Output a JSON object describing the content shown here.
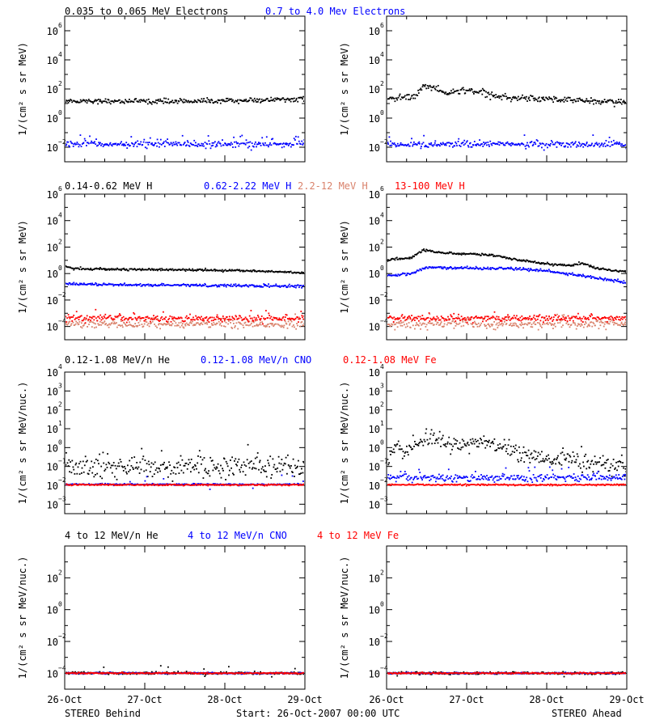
{
  "colors": {
    "black": "#000000",
    "blue": "#0000ff",
    "salmon": "#d9826b",
    "red": "#ff0000"
  },
  "footer": {
    "left": "STEREO Behind",
    "center": "Start: 26-Oct-2007 00:00 UTC",
    "right": "STEREO Ahead"
  },
  "x_axis": {
    "ticks": [
      "26-Oct",
      "27-Oct",
      "28-Oct",
      "29-Oct"
    ],
    "range_days": [
      0,
      3
    ],
    "minor_tick_hours": 6
  },
  "rows": [
    {
      "legend": [
        {
          "text": "0.035 to 0.065 MeV Electrons",
          "color": "#000000"
        },
        {
          "text": "0.7 to 4.0 Mev Electrons",
          "color": "#0000ff"
        }
      ],
      "ylabel": "1/(cm² s sr MeV)",
      "log_range": [
        -3,
        7
      ],
      "tick_exponents": [
        -2,
        0,
        2,
        4,
        6
      ]
    },
    {
      "legend": [
        {
          "text": "0.14-0.62 MeV H",
          "color": "#000000"
        },
        {
          "text": "0.62-2.22 MeV H",
          "color": "#0000ff"
        },
        {
          "text": "2.2-12 MeV H",
          "color": "#d9826b"
        },
        {
          "text": "13-100 MeV H",
          "color": "#ff0000"
        }
      ],
      "ylabel": "1/(cm² s sr MeV)",
      "log_range": [
        -5,
        6
      ],
      "tick_exponents": [
        -4,
        -2,
        0,
        2,
        4,
        6
      ]
    },
    {
      "legend": [
        {
          "text": "0.12-1.08 MeV/n He",
          "color": "#000000"
        },
        {
          "text": "0.12-1.08 MeV/n CNO",
          "color": "#0000ff"
        },
        {
          "text": "0.12-1.08 MeV Fe",
          "color": "#ff0000"
        }
      ],
      "ylabel": "1/(cm² s sr MeV/nuc.)",
      "log_range": [
        -3.5,
        4
      ],
      "tick_exponents": [
        -3,
        -2,
        -1,
        0,
        1,
        2,
        3,
        4
      ]
    },
    {
      "legend": [
        {
          "text": "4 to 12 MeV/n He",
          "color": "#000000"
        },
        {
          "text": "4 to 12 MeV/n CNO",
          "color": "#0000ff"
        },
        {
          "text": "4 to 12 MeV Fe",
          "color": "#ff0000"
        }
      ],
      "ylabel": "1/(cm² s sr MeV/nuc.)",
      "log_range": [
        -5,
        4
      ],
      "tick_exponents": [
        -4,
        -2,
        0,
        2
      ]
    }
  ],
  "chart_data": [
    {
      "type": "scatter",
      "panel": "electrons-behind",
      "row": 0,
      "col": 0,
      "yscale": "log",
      "series": [
        {
          "name": "0.035 to 0.065 MeV Electrons",
          "color": "#000000",
          "baseline": [
            [
              0,
              15
            ],
            [
              1,
              14
            ],
            [
              2,
              15
            ],
            [
              3,
              20
            ]
          ],
          "scatter": 0.08,
          "outliers": 0.0
        },
        {
          "name": "0.7 to 4.0 Mev Electrons",
          "color": "#0000ff",
          "baseline": [
            [
              0,
              0.016
            ],
            [
              3,
              0.016
            ]
          ],
          "scatter": 0.1,
          "outliers": 0.12
        }
      ]
    },
    {
      "type": "scatter",
      "panel": "electrons-ahead",
      "row": 0,
      "col": 1,
      "yscale": "log",
      "series": [
        {
          "name": "0.035 to 0.065 MeV Electrons",
          "color": "#000000",
          "baseline": [
            [
              0,
              20
            ],
            [
              0.2,
              25
            ],
            [
              0.35,
              30
            ],
            [
              0.45,
              150
            ],
            [
              0.6,
              120
            ],
            [
              0.7,
              50
            ],
            [
              0.9,
              70
            ],
            [
              1.0,
              80
            ],
            [
              1.2,
              60
            ],
            [
              1.35,
              30
            ],
            [
              1.6,
              25
            ],
            [
              2.0,
              20
            ],
            [
              2.5,
              15
            ],
            [
              3,
              12
            ]
          ],
          "scatter": 0.1,
          "outliers": 0.0
        },
        {
          "name": "0.7 to 4.0 Mev Electrons",
          "color": "#0000ff",
          "baseline": [
            [
              0,
              0.015
            ],
            [
              3,
              0.015
            ]
          ],
          "scatter": 0.1,
          "outliers": 0.1
        }
      ]
    },
    {
      "type": "scatter",
      "panel": "protons-behind",
      "row": 1,
      "col": 0,
      "yscale": "log",
      "series": [
        {
          "name": "0.14-0.62 MeV H",
          "color": "#000000",
          "baseline": [
            [
              0,
              3.5
            ],
            [
              0.1,
              2.3
            ],
            [
              1,
              2
            ],
            [
              2,
              1.7
            ],
            [
              2.5,
              1.5
            ],
            [
              3,
              1.1
            ]
          ],
          "scatter": 0.04,
          "outliers": 0.0
        },
        {
          "name": "0.62-2.22 MeV H",
          "color": "#0000ff",
          "baseline": [
            [
              0,
              0.15
            ],
            [
              3,
              0.11
            ]
          ],
          "scatter": 0.05,
          "outliers": 0.0
        },
        {
          "name": "2.2-12 MeV H",
          "color": "#d9826b",
          "baseline": [
            [
              0,
              0.00015
            ],
            [
              3,
              0.00015
            ]
          ],
          "scatter": 0.15,
          "outliers": 0.2
        },
        {
          "name": "13-100 MeV H",
          "color": "#ff0000",
          "baseline": [
            [
              0,
              0.0004
            ],
            [
              3,
              0.0004
            ]
          ],
          "scatter": 0.12,
          "outliers": 0.05
        }
      ]
    },
    {
      "type": "scatter",
      "panel": "protons-ahead",
      "row": 1,
      "col": 1,
      "yscale": "log",
      "series": [
        {
          "name": "0.14-0.62 MeV H",
          "color": "#000000",
          "baseline": [
            [
              0,
              10
            ],
            [
              0.3,
              15
            ],
            [
              0.45,
              60
            ],
            [
              0.6,
              40
            ],
            [
              1.0,
              30
            ],
            [
              1.3,
              25
            ],
            [
              1.5,
              15
            ],
            [
              1.8,
              8
            ],
            [
              2.0,
              5
            ],
            [
              2.3,
              4
            ],
            [
              2.45,
              6
            ],
            [
              2.6,
              2.5
            ],
            [
              3,
              1.3
            ]
          ],
          "scatter": 0.04,
          "outliers": 0.0
        },
        {
          "name": "0.62-2.22 MeV H",
          "color": "#0000ff",
          "baseline": [
            [
              0,
              0.7
            ],
            [
              0.3,
              1
            ],
            [
              0.5,
              3
            ],
            [
              1.0,
              2.5
            ],
            [
              1.5,
              2.5
            ],
            [
              2.0,
              1.5
            ],
            [
              2.5,
              0.6
            ],
            [
              3,
              0.2
            ]
          ],
          "scatter": 0.05,
          "outliers": 0.0
        },
        {
          "name": "2.2-12 MeV H",
          "color": "#d9826b",
          "baseline": [
            [
              0,
              0.00015
            ],
            [
              3,
              0.00015
            ]
          ],
          "scatter": 0.15,
          "outliers": 0.2
        },
        {
          "name": "13-100 MeV H",
          "color": "#ff0000",
          "baseline": [
            [
              0,
              0.0004
            ],
            [
              3,
              0.0004
            ]
          ],
          "scatter": 0.12,
          "outliers": 0.05
        }
      ]
    },
    {
      "type": "scatter",
      "panel": "ions-low-behind",
      "row": 2,
      "col": 0,
      "yscale": "log",
      "series": [
        {
          "name": "0.12-1.08 MeV/n He",
          "color": "#000000",
          "baseline": [
            [
              0,
              0.12
            ],
            [
              0.3,
              0.1
            ],
            [
              3,
              0.09
            ]
          ],
          "scatter": 0.3,
          "outliers": 0.2
        },
        {
          "name": "0.12-1.08 MeV/n CNO",
          "color": "#0000ff",
          "baseline": [
            [
              0,
              0.011
            ],
            [
              3,
              0.011
            ]
          ],
          "scatter": 0.02,
          "outliers": 0.05
        },
        {
          "name": "0.12-1.08 MeV Fe",
          "color": "#ff0000",
          "baseline": [
            [
              0,
              0.0105
            ],
            [
              3,
              0.0105
            ]
          ],
          "scatter": 0.02,
          "outliers": 0.0
        }
      ]
    },
    {
      "type": "scatter",
      "panel": "ions-low-ahead",
      "row": 2,
      "col": 1,
      "yscale": "log",
      "series": [
        {
          "name": "0.12-1.08 MeV/n He",
          "color": "#000000",
          "baseline": [
            [
              0,
              0.2
            ],
            [
              0.1,
              1.5
            ],
            [
              0.2,
              0.5
            ],
            [
              0.4,
              2.5
            ],
            [
              0.6,
              3.0
            ],
            [
              0.8,
              1.5
            ],
            [
              1.0,
              1.2
            ],
            [
              1.1,
              2.2
            ],
            [
              1.3,
              1.8
            ],
            [
              1.5,
              0.7
            ],
            [
              1.7,
              0.4
            ],
            [
              2.0,
              0.25
            ],
            [
              2.3,
              0.25
            ],
            [
              2.5,
              0.12
            ],
            [
              3,
              0.1
            ]
          ],
          "scatter": 0.2,
          "outliers": 0.15
        },
        {
          "name": "0.12-1.08 MeV/n CNO",
          "color": "#0000ff",
          "baseline": [
            [
              0,
              0.025
            ],
            [
              3,
              0.025
            ]
          ],
          "scatter": 0.1,
          "outliers": 0.08
        },
        {
          "name": "0.12-1.08 MeV Fe",
          "color": "#ff0000",
          "baseline": [
            [
              0,
              0.0105
            ],
            [
              3,
              0.0105
            ]
          ],
          "scatter": 0.02,
          "outliers": 0.0
        }
      ]
    },
    {
      "type": "scatter",
      "panel": "ions-high-behind",
      "row": 3,
      "col": 0,
      "yscale": "log",
      "series": [
        {
          "name": "4 to 12 MeV/n He",
          "color": "#000000",
          "baseline": [
            [
              0,
              0.0001
            ],
            [
              3,
              0.0001
            ]
          ],
          "scatter": 0.04,
          "outliers": 0.04
        },
        {
          "name": "4 to 12 MeV/n CNO",
          "color": "#0000ff",
          "baseline": [
            [
              0,
              0.0001
            ],
            [
              3,
              0.0001
            ]
          ],
          "scatter": 0.02,
          "outliers": 0.0
        },
        {
          "name": "4 to 12 MeV Fe",
          "color": "#ff0000",
          "baseline": [
            [
              0,
              0.0001
            ],
            [
              3,
              0.0001
            ]
          ],
          "scatter": 0.02,
          "outliers": 0.0
        }
      ]
    },
    {
      "type": "scatter",
      "panel": "ions-high-ahead",
      "row": 3,
      "col": 1,
      "yscale": "log",
      "series": [
        {
          "name": "4 to 12 MeV/n He",
          "color": "#000000",
          "baseline": [
            [
              0,
              0.0001
            ],
            [
              3,
              0.0001
            ]
          ],
          "scatter": 0.04,
          "outliers": 0.03
        },
        {
          "name": "4 to 12 MeV/n CNO",
          "color": "#0000ff",
          "baseline": [
            [
              0,
              0.0001
            ],
            [
              3,
              0.0001
            ]
          ],
          "scatter": 0.02,
          "outliers": 0.0
        },
        {
          "name": "4 to 12 MeV Fe",
          "color": "#ff0000",
          "baseline": [
            [
              0,
              0.0001
            ],
            [
              3,
              0.0001
            ]
          ],
          "scatter": 0.02,
          "outliers": 0.0
        }
      ]
    }
  ]
}
